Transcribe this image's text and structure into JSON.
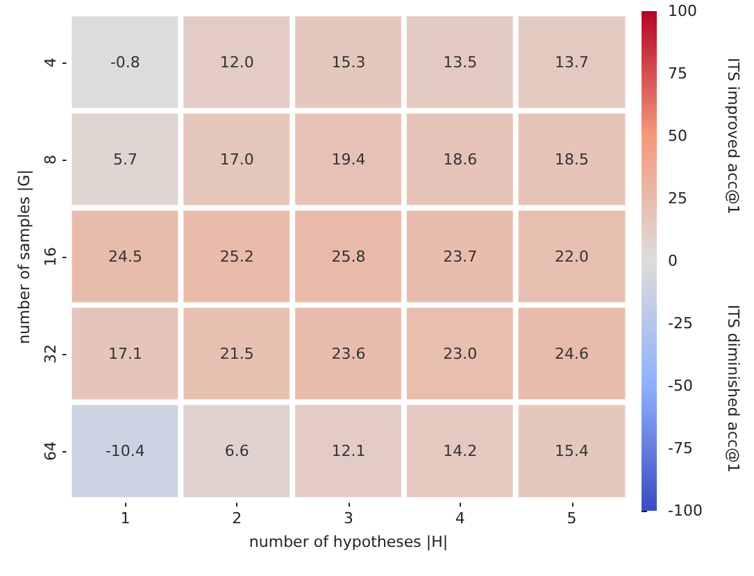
{
  "chart_data": {
    "type": "heatmap",
    "xlabel": "number of hypotheses |H|",
    "ylabel": "number of samples |G|",
    "clabel": "ITS improved acc@1",
    "annotations": [
      "ITS diminished acc@1"
    ],
    "categories": [
      "1",
      "2",
      "3",
      "4",
      "5"
    ],
    "y_categories": [
      "4",
      "8",
      "16",
      "32",
      "64"
    ],
    "cells": [
      [
        -0.8,
        12.0,
        15.3,
        13.5,
        13.7
      ],
      [
        5.7,
        17.0,
        19.4,
        18.6,
        18.5
      ],
      [
        24.5,
        25.2,
        25.8,
        23.7,
        22.0
      ],
      [
        17.1,
        21.5,
        23.6,
        23.0,
        24.6
      ],
      [
        -10.4,
        6.6,
        12.1,
        14.2,
        15.4
      ]
    ],
    "cell_labels": [
      [
        "-0.8",
        "12.0",
        "15.3",
        "13.5",
        "13.7"
      ],
      [
        "5.7",
        "17.0",
        "19.4",
        "18.6",
        "18.5"
      ],
      [
        "24.5",
        "25.2",
        "25.8",
        "23.7",
        "22.0"
      ],
      [
        "17.1",
        "21.5",
        "23.6",
        "23.0",
        "24.6"
      ],
      [
        "-10.4",
        "6.6",
        "12.1",
        "14.2",
        "15.4"
      ]
    ],
    "clim": [
      -100,
      100
    ],
    "cticks": [
      -100,
      -75,
      -50,
      -25,
      0,
      25,
      50,
      75,
      100
    ],
    "data_labels": true
  }
}
